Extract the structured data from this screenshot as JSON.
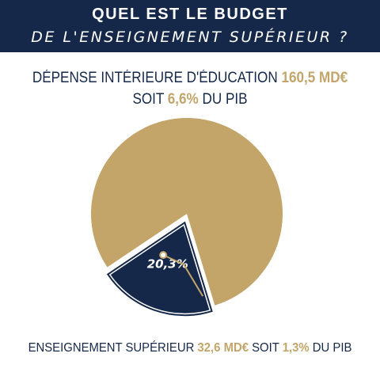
{
  "header": {
    "line1": "QUEL EST LE BUDGET",
    "line2": "DE L'ENSEIGNEMENT SUPÉRIEUR ?"
  },
  "headline": {
    "line1_text": "DÉPENSE INTÉRIEURE D'ÉDUCATION",
    "line1_value": "160,5 MD€",
    "line2_prefix": "SOIT",
    "line2_value": "6,6%",
    "line2_suffix": "DU PIB"
  },
  "footer": {
    "text": "ENSEIGNEMENT SUPÉRIEUR",
    "value": "32,6 MD€",
    "mid": "SOIT",
    "pct": "1,3%",
    "suffix": "DU PIB"
  },
  "colors": {
    "navy": "#15284a",
    "gold": "#c3a56a",
    "white": "#ffffff"
  },
  "chart_data": {
    "type": "pie",
    "slices": [
      {
        "name": "",
        "value": 79.7,
        "color": "#c3a56a",
        "label": ""
      },
      {
        "name": "",
        "value": 20.3,
        "color": "#15284a",
        "label": "20,3%",
        "exploded": true
      }
    ]
  }
}
